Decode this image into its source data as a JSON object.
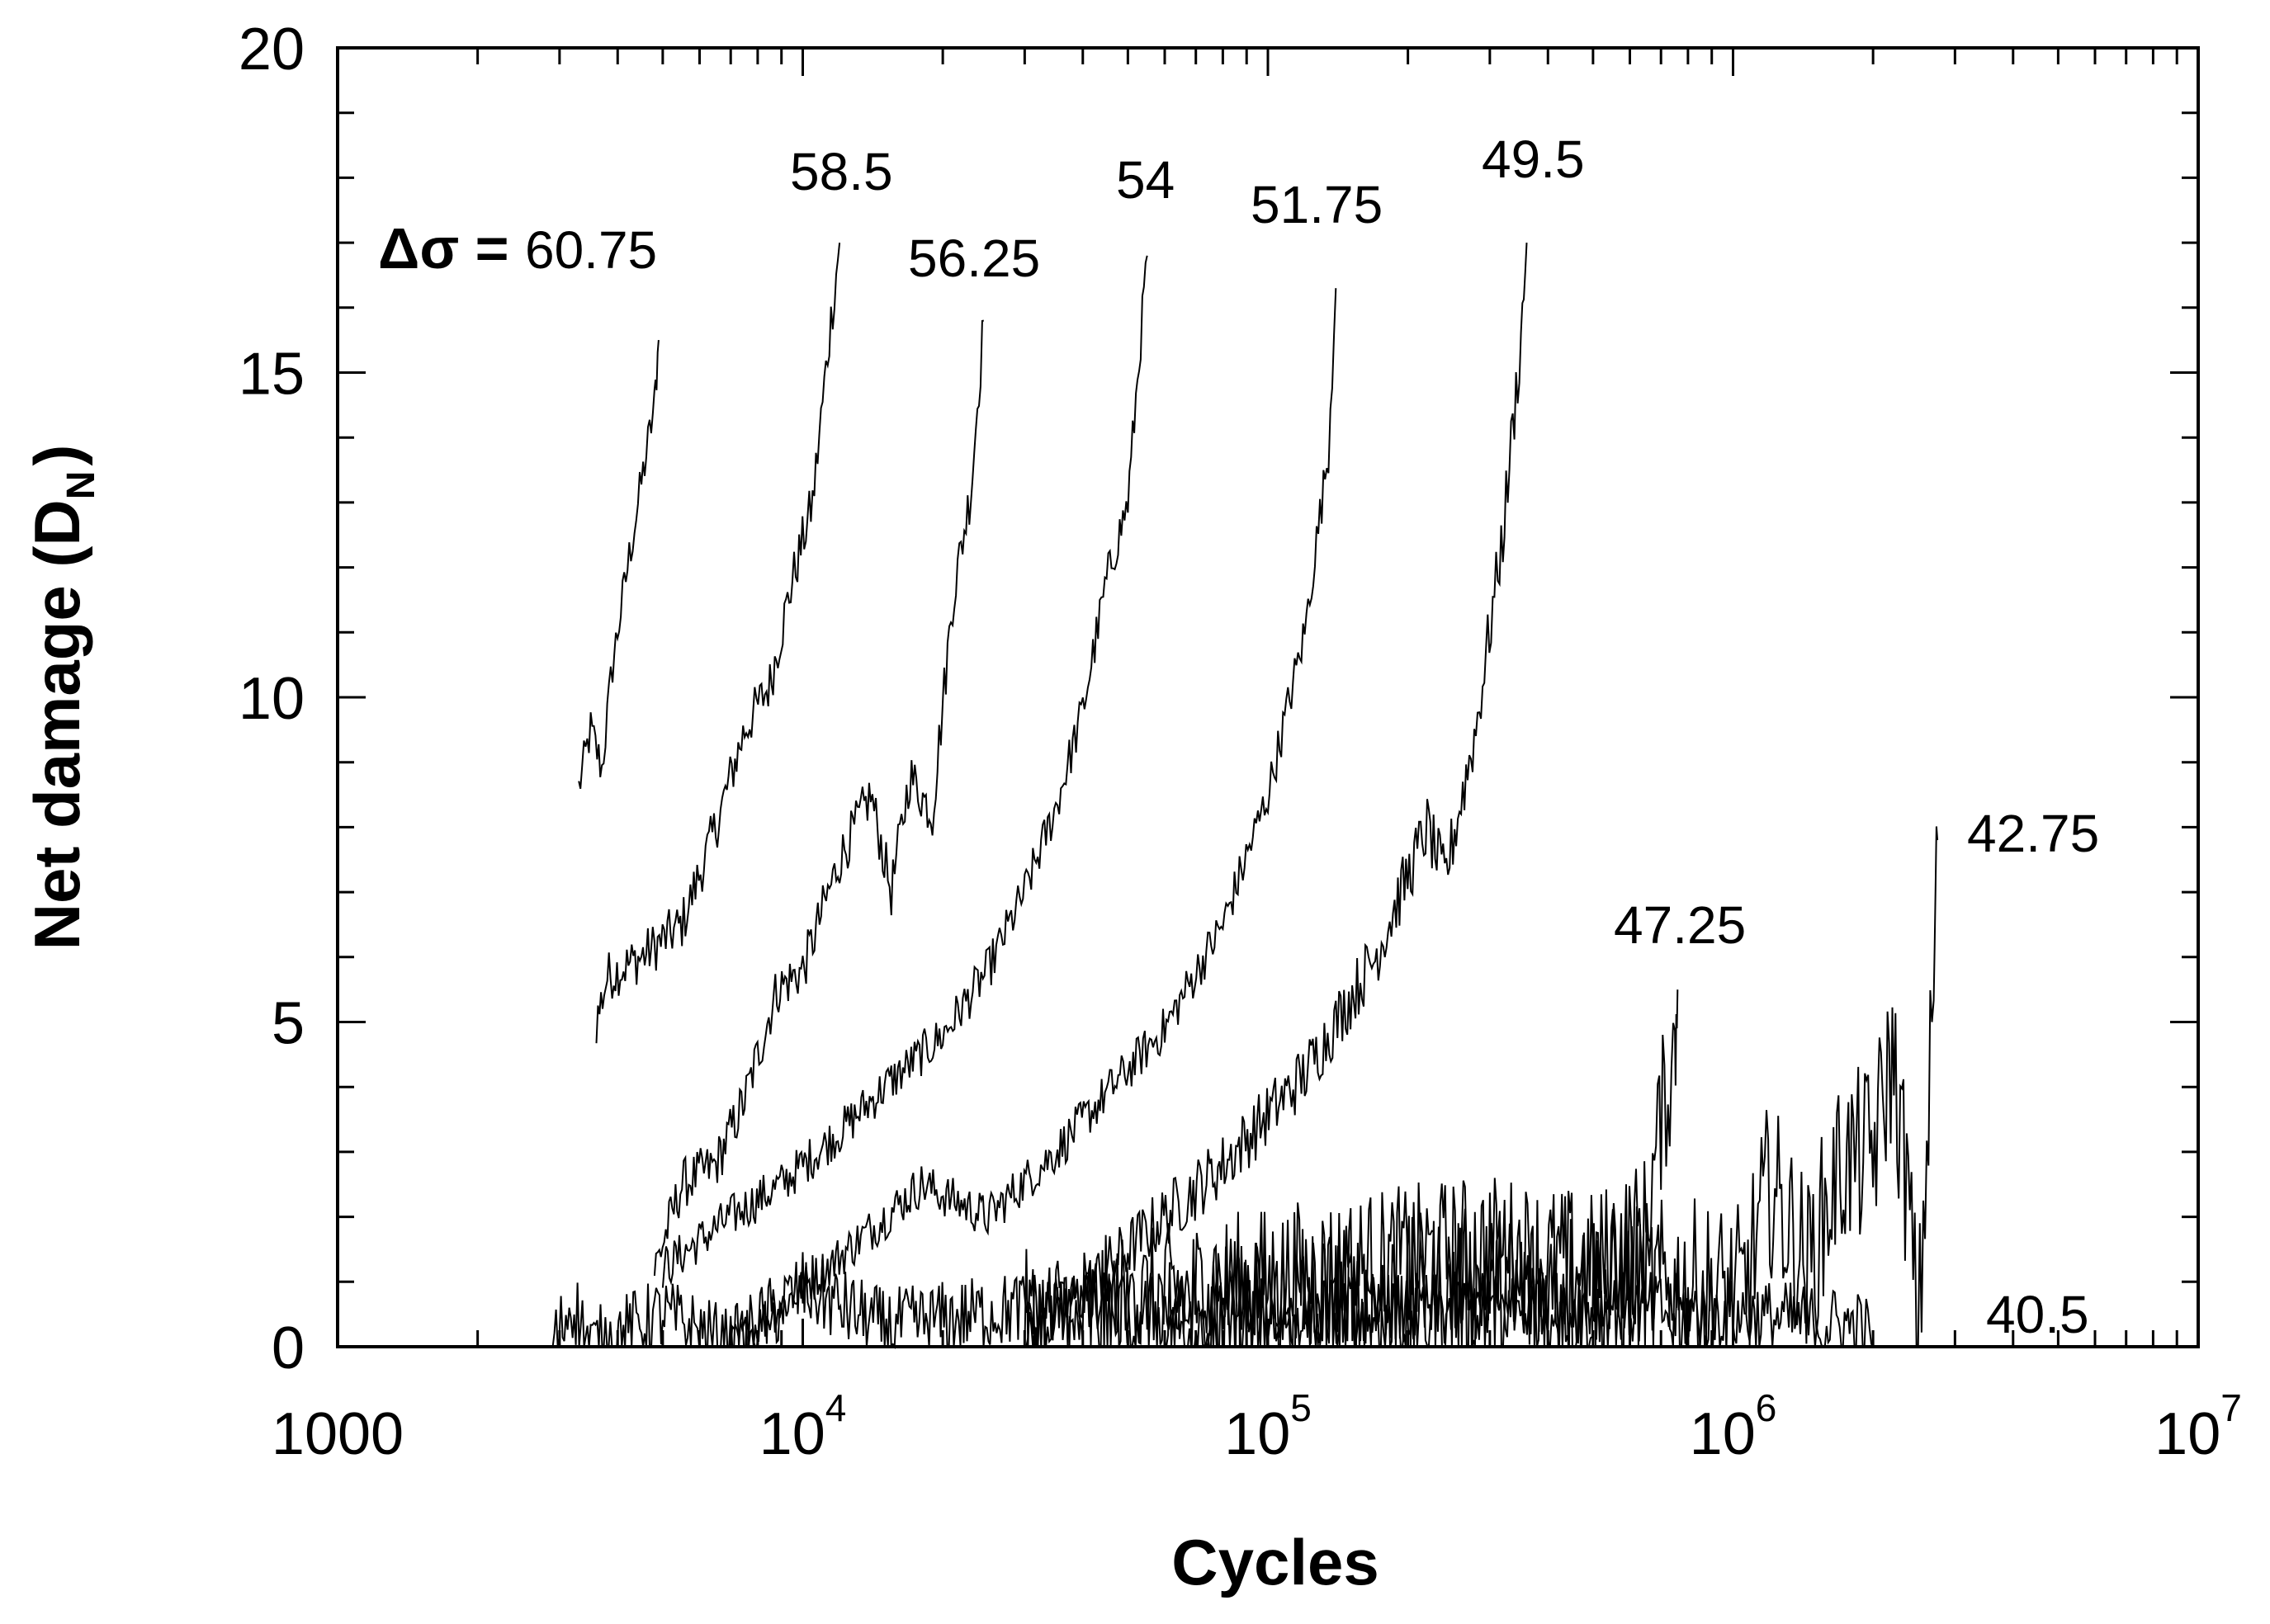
{
  "chart_data": {
    "type": "line",
    "title": "",
    "xlabel": "Cycles",
    "ylabel": "Net damage (D_N)",
    "ylabel_main": "Net damage (D",
    "ylabel_sub": "N",
    "ylabel_close": ")",
    "xscale": "log",
    "xlim": [
      1000,
      10000000
    ],
    "ylim": [
      0,
      20
    ],
    "grid": false,
    "legend": "none (inline annotations)",
    "x_ticks": [
      {
        "value": 1000,
        "base": "1000",
        "exp": ""
      },
      {
        "value": 10000,
        "base": "10",
        "exp": "4"
      },
      {
        "value": 100000,
        "base": "10",
        "exp": "5"
      },
      {
        "value": 1000000,
        "base": "10",
        "exp": "6"
      },
      {
        "value": 10000000,
        "base": "10",
        "exp": "7"
      }
    ],
    "y_ticks": [
      {
        "value": 0,
        "label": "0"
      },
      {
        "value": 5,
        "label": "5"
      },
      {
        "value": 10,
        "label": "10"
      },
      {
        "value": 15,
        "label": "15"
      },
      {
        "value": 20,
        "label": "20"
      }
    ],
    "y_minor_step": 1,
    "annotation_prefix": "Δσ = ",
    "series": [
      {
        "name": "60.75",
        "label": "60.75",
        "noise": 0.35,
        "points": [
          [
            3300,
            8.6
          ],
          [
            3500,
            9.5
          ],
          [
            3700,
            8.9
          ],
          [
            3900,
            10.5
          ],
          [
            4200,
            12.0
          ],
          [
            4500,
            13.3
          ],
          [
            4800,
            14.5
          ],
          [
            4900,
            15.5
          ]
        ]
      },
      {
        "name": "58.5",
        "label": "58.5",
        "noise": 0.4,
        "points": [
          [
            3600,
            5.0
          ],
          [
            3800,
            5.7
          ],
          [
            4500,
            6.0
          ],
          [
            5500,
            6.5
          ],
          [
            6500,
            8.0
          ],
          [
            7500,
            9.5
          ],
          [
            8500,
            10.2
          ],
          [
            9500,
            11.8
          ],
          [
            10500,
            13.0
          ],
          [
            11500,
            15.8
          ],
          [
            12000,
            17.0
          ]
        ]
      },
      {
        "name": "56.25",
        "label": "56.25",
        "noise": 0.4,
        "points": [
          [
            4800,
            1.2
          ],
          [
            5500,
            2.5
          ],
          [
            6500,
            2.8
          ],
          [
            7500,
            3.8
          ],
          [
            8800,
            5.5
          ],
          [
            10000,
            5.8
          ],
          [
            12000,
            7.5
          ],
          [
            14000,
            8.5
          ],
          [
            15500,
            7.0
          ],
          [
            17000,
            8.8
          ],
          [
            19000,
            8.2
          ],
          [
            21000,
            11.5
          ],
          [
            23000,
            13.2
          ],
          [
            24500,
            15.8
          ]
        ]
      },
      {
        "name": "54",
        "label": "54",
        "noise": 0.35,
        "points": [
          [
            5000,
            1.2
          ],
          [
            7000,
            2.0
          ],
          [
            9000,
            2.5
          ],
          [
            12000,
            3.3
          ],
          [
            15000,
            4.0
          ],
          [
            20000,
            4.8
          ],
          [
            25000,
            5.8
          ],
          [
            30000,
            7.0
          ],
          [
            35000,
            8.3
          ],
          [
            40000,
            9.8
          ],
          [
            45000,
            11.8
          ],
          [
            50000,
            13.0
          ],
          [
            55000,
            16.8
          ]
        ]
      },
      {
        "name": "51.75",
        "label": "51.75",
        "noise": 0.35,
        "points": [
          [
            7000,
            0.0
          ],
          [
            10000,
            0.9
          ],
          [
            14000,
            1.8
          ],
          [
            18000,
            2.5
          ],
          [
            25000,
            2.0
          ],
          [
            35000,
            3.0
          ],
          [
            45000,
            3.9
          ],
          [
            60000,
            4.9
          ],
          [
            80000,
            6.5
          ],
          [
            100000,
            8.5
          ],
          [
            120000,
            11.0
          ],
          [
            135000,
            13.8
          ],
          [
            140000,
            16.3
          ]
        ]
      },
      {
        "name": "49.5",
        "label": "49.5",
        "noise": 0.5,
        "points": [
          [
            30000,
            0.0
          ],
          [
            50000,
            1.5
          ],
          [
            80000,
            2.8
          ],
          [
            120000,
            4.2
          ],
          [
            170000,
            6.0
          ],
          [
            220000,
            8.0
          ],
          [
            240000,
            7.2
          ],
          [
            280000,
            9.5
          ],
          [
            320000,
            12.5
          ],
          [
            350000,
            15.5
          ],
          [
            360000,
            17.0
          ]
        ]
      },
      {
        "name": "47.25",
        "label": "47.25",
        "noise": 1.2,
        "points": [
          [
            30000,
            0.3
          ],
          [
            100000,
            1.0
          ],
          [
            300000,
            1.5
          ],
          [
            500000,
            1.2
          ],
          [
            650000,
            1.8
          ],
          [
            700000,
            3.5
          ],
          [
            750000,
            4.6
          ],
          [
            760000,
            5.5
          ]
        ]
      },
      {
        "name": "42.75",
        "label": "42.75",
        "noise": 1.4,
        "points": [
          [
            60000,
            0.2
          ],
          [
            300000,
            0.8
          ],
          [
            800000,
            0.9
          ],
          [
            1050000,
            0.8
          ],
          [
            1200000,
            2.5
          ],
          [
            1450000,
            1.2
          ],
          [
            1700000,
            2.8
          ],
          [
            2000000,
            3.0
          ],
          [
            2200000,
            4.5
          ],
          [
            2400000,
            2.0
          ],
          [
            2500000,
            0.0
          ],
          [
            2700000,
            5.5
          ],
          [
            2750000,
            7.8
          ]
        ]
      },
      {
        "name": "40.5",
        "label": "40.5",
        "noise": 0.6,
        "points": [
          [
            2900,
            0.0
          ],
          [
            3200,
            0.7
          ],
          [
            3500,
            0.0
          ],
          [
            5000,
            0.5
          ],
          [
            7000,
            0.0
          ],
          [
            10000,
            0.9
          ],
          [
            15000,
            0.3
          ],
          [
            30000,
            0.6
          ],
          [
            100000,
            0.5
          ],
          [
            500000,
            0.6
          ],
          [
            1000000,
            0.5
          ],
          [
            1900000,
            0.3
          ],
          [
            2000000,
            0.0
          ]
        ]
      }
    ],
    "label_positions": {
      "60.75": [
        668,
        325
      ],
      "58.5": [
        957,
        230
      ],
      "56.25": [
        1100,
        335
      ],
      "54": [
        1352,
        240
      ],
      "51.75": [
        1515,
        270
      ],
      "49.5": [
        1795,
        215
      ],
      "47.25": [
        1955,
        1143
      ],
      "42.75": [
        2383,
        1032
      ],
      "40.5": [
        2406,
        1615
      ]
    }
  }
}
